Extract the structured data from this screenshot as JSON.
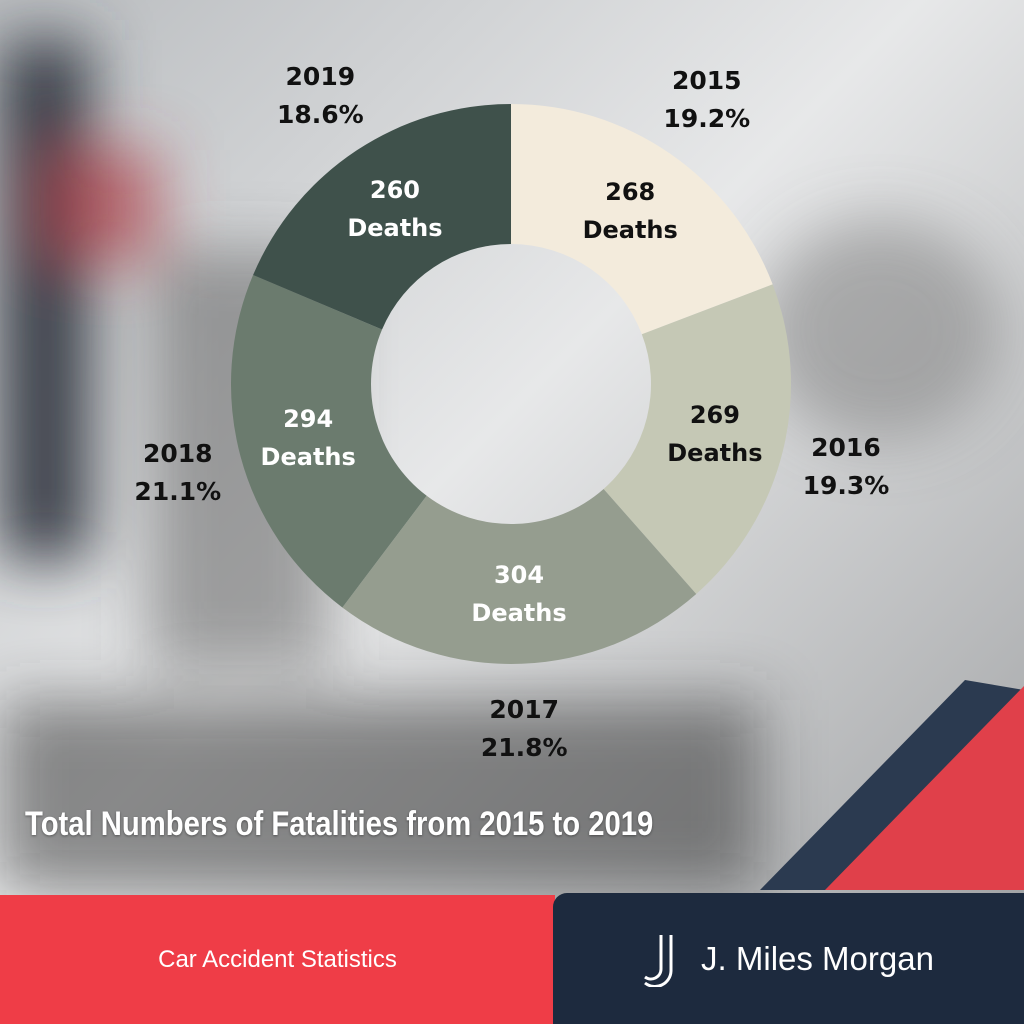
{
  "chart_data": {
    "type": "donut",
    "title": "Total Numbers of Fatalities from 2015 to 2019",
    "categories": [
      "2015",
      "2016",
      "2017",
      "2018",
      "2019"
    ],
    "values": [
      268,
      269,
      304,
      294,
      260
    ],
    "value_labels": [
      "268 Deaths",
      "269 Deaths",
      "304 Deaths",
      "294 Deaths",
      "260 Deaths"
    ],
    "percent_labels": [
      "19.2%",
      "19.3%",
      "21.8%",
      "21.1%",
      "18.6%"
    ],
    "colors": [
      "#f3ebdc",
      "#c5c8b5",
      "#959d8f",
      "#6b7b6e",
      "#3f514b"
    ]
  },
  "footer": {
    "left": "Car Accident Statistics",
    "brand": "J. Miles Morgan"
  }
}
